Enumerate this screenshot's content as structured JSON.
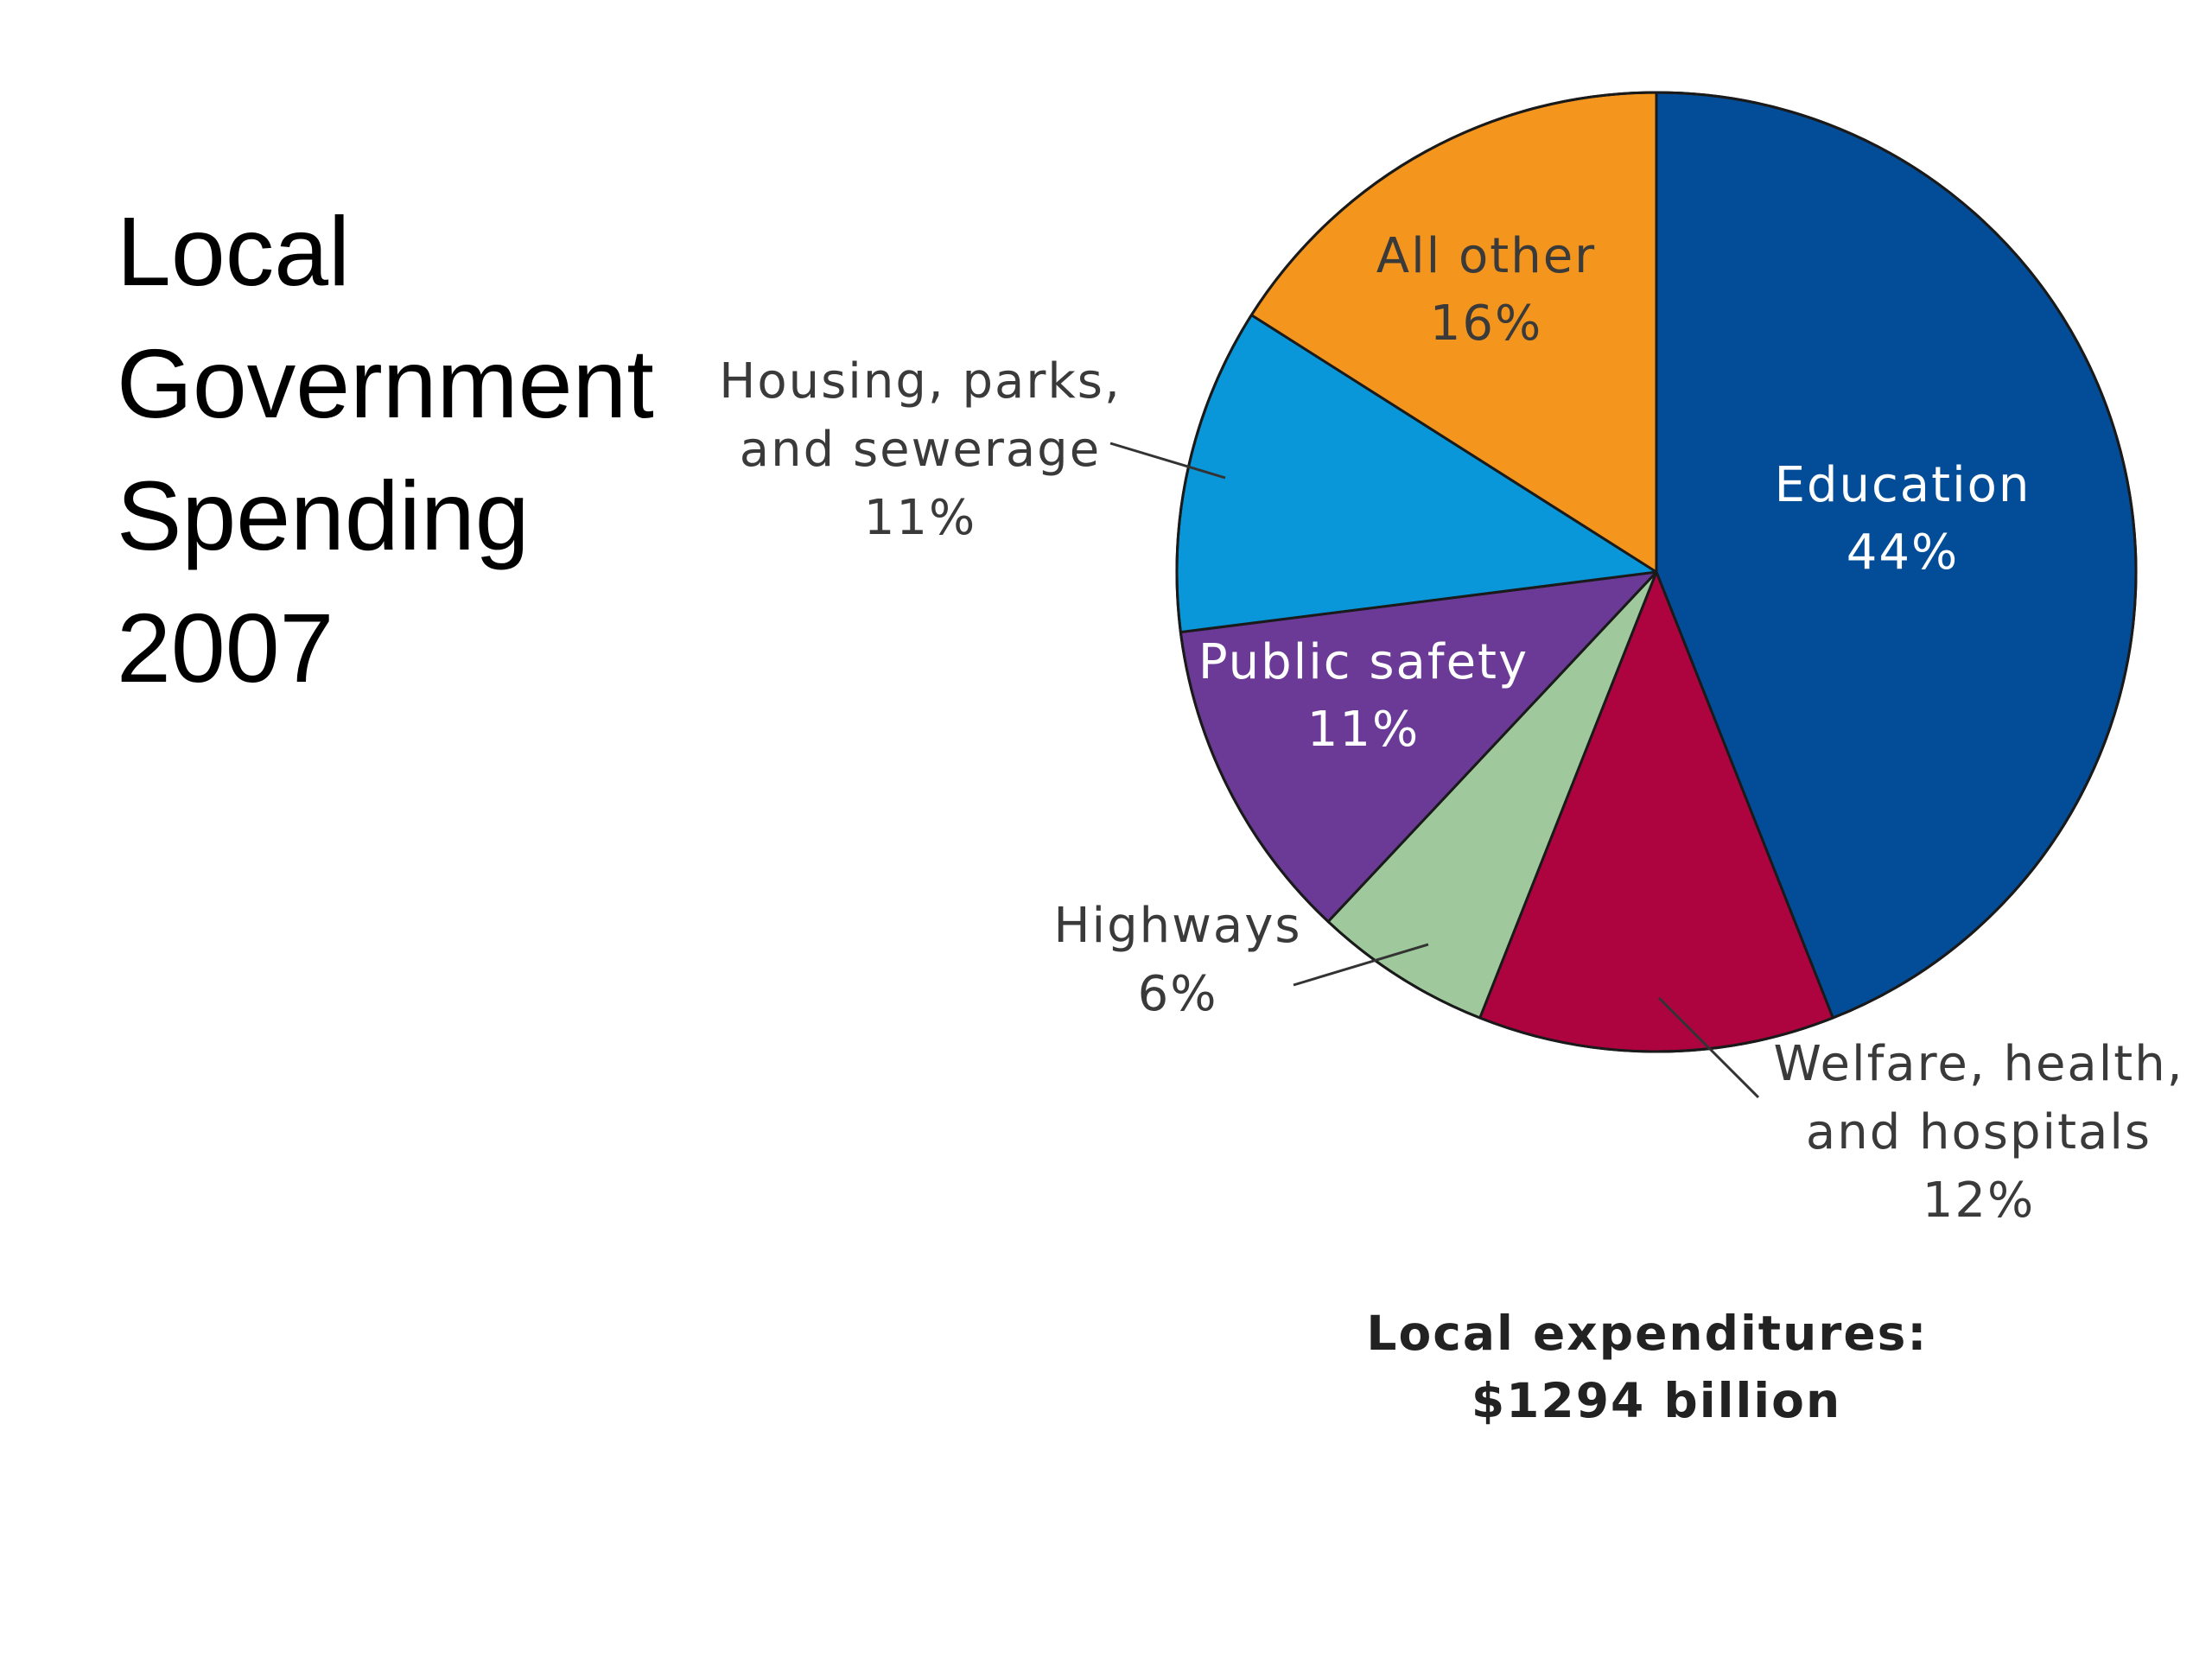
{
  "slide": {
    "title_lines": [
      "Local",
      "Government",
      "Spending",
      "2007"
    ]
  },
  "chart_data": {
    "type": "pie",
    "title": "Local Government Spending 2007",
    "unit": "%",
    "slices": [
      {
        "label_lines": [
          "Education",
          "44%"
        ],
        "value": 44,
        "color": "#034d98",
        "label_color": "#ffffff"
      },
      {
        "label_lines": [
          "Welfare, health,",
          "and hospitals",
          "12%"
        ],
        "value": 12,
        "color": "#ad0440",
        "label_color": "#3a3a3a"
      },
      {
        "label_lines": [
          "Highways",
          "6%"
        ],
        "value": 6,
        "color": "#9fc99d",
        "label_color": "#3a3a3a"
      },
      {
        "label_lines": [
          "Public safety",
          "11%"
        ],
        "value": 11,
        "color": "#6b3a96",
        "label_color": "#ffffff"
      },
      {
        "label_lines": [
          "Housing, parks,",
          "and sewerage",
          "11%"
        ],
        "value": 11,
        "color": "#0a97d9",
        "label_color": "#3a3a3a"
      },
      {
        "label_lines": [
          "All other",
          "16%"
        ],
        "value": 16,
        "color": "#f4961e",
        "label_color": "#3a3a3a"
      }
    ],
    "start_angle": "12 o'clock",
    "direction": "clockwise",
    "footnote_lines": [
      "Local expenditures:",
      "$1294 billion"
    ]
  }
}
